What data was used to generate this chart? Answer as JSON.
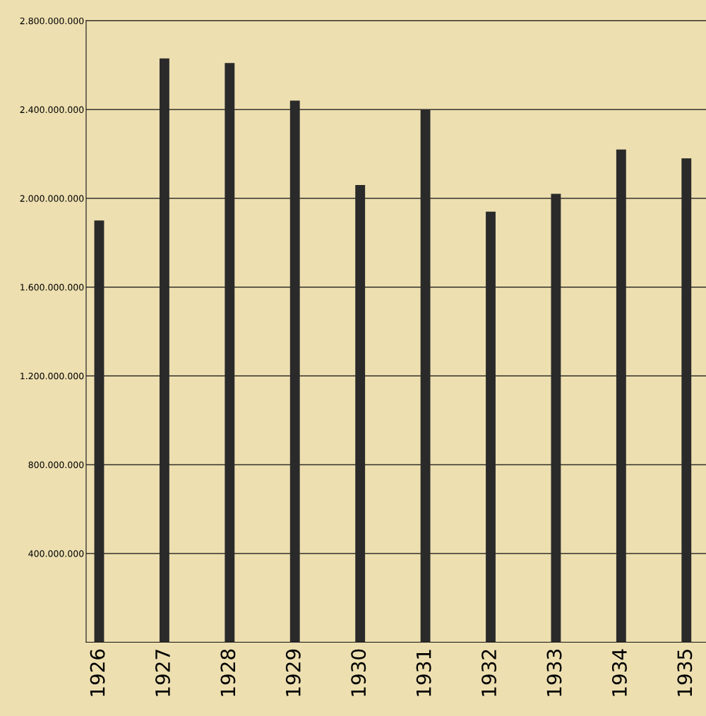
{
  "chart_data": {
    "type": "bar",
    "categories": [
      "1926",
      "1927",
      "1928",
      "1929",
      "1930",
      "1931",
      "1932",
      "1933",
      "1934",
      "1935"
    ],
    "values": [
      1900000000,
      2630000000,
      2610000000,
      2440000000,
      2060000000,
      2400000000,
      1940000000,
      2020000000,
      2220000000,
      2180000000
    ],
    "color": "#2b2a2a",
    "ylim": [
      0,
      2800000000
    ],
    "yticks": [
      {
        "value": 400000000,
        "label": "400.000.000"
      },
      {
        "value": 800000000,
        "label": "800.000.000"
      },
      {
        "value": 1200000000,
        "label": "1.200.000.000"
      },
      {
        "value": 1600000000,
        "label": "1.600.000.000"
      },
      {
        "value": 2000000000,
        "label": "2.000.000.000"
      },
      {
        "value": 2400000000,
        "label": "2.400.000.000"
      },
      {
        "value": 2800000000,
        "label": "2.800.000.000"
      }
    ],
    "grid": "y"
  }
}
